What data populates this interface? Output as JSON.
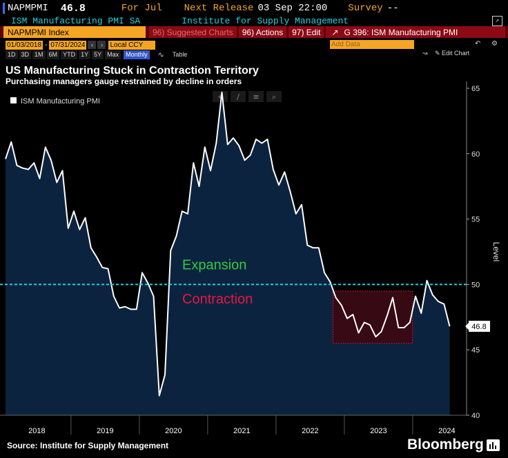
{
  "header": {
    "ticker": "NAPMPMI",
    "value": "46.8",
    "for_label": "For Jul",
    "next_release_label": "Next Release",
    "next_release": "03 Sep 22:00",
    "survey_label": "Survey",
    "survey_value": "--",
    "series_name": "ISM Manufacturing PMI SA",
    "source_name": "Institute for Supply Management"
  },
  "toolbar": {
    "index_label": "NAPMPMI Index",
    "suggested": "96) Suggested Charts",
    "actions": "96) Actions",
    "edit": "97) Edit",
    "gtitle": "G 396: ISM Manufacturing PMI"
  },
  "range": {
    "start": "01/03/2018",
    "end": "07/31/2024",
    "ccy": "Local CCY",
    "periods": [
      "1D",
      "3D",
      "1M",
      "6M",
      "YTD",
      "1Y",
      "5Y",
      "Max"
    ],
    "freq": "Monthly",
    "table_label": "Table",
    "add_data": "Add Data",
    "edit_chart": "Edit Chart"
  },
  "headline": {
    "title": "US Manufacturing Stuck in Contraction Territory",
    "subtitle": "Purchasing managers gauge restrained by decline in orders"
  },
  "footer": {
    "source": "Source: Institute for Supply Management",
    "brand": "Bloomberg"
  },
  "colors": {
    "area": "#0c2340",
    "line": "#ffffff",
    "threshold": "#1fd3e0",
    "expansion": "#2ecc40",
    "contraction": "#e8173f"
  },
  "chart_data": {
    "type": "area",
    "series_name": "ISM Manufacturing PMI",
    "ylabel": "Level",
    "ylim": [
      40,
      65
    ],
    "yticks": [
      40,
      45,
      50,
      55,
      60,
      65
    ],
    "year_labels": [
      "2018",
      "2019",
      "2020",
      "2021",
      "2022",
      "2023",
      "2024"
    ],
    "threshold": 50,
    "annotations": {
      "expansion": "Expansion",
      "contraction": "Contraction"
    },
    "last_value_label": "46.8",
    "highlight_box": {
      "x_start": "2022-11",
      "x_end": "2023-12",
      "y_low": 45.5,
      "y_high": 49.5
    },
    "x": [
      "2018-01",
      "2018-02",
      "2018-03",
      "2018-04",
      "2018-05",
      "2018-06",
      "2018-07",
      "2018-08",
      "2018-09",
      "2018-10",
      "2018-11",
      "2018-12",
      "2019-01",
      "2019-02",
      "2019-03",
      "2019-04",
      "2019-05",
      "2019-06",
      "2019-07",
      "2019-08",
      "2019-09",
      "2019-10",
      "2019-11",
      "2019-12",
      "2020-01",
      "2020-02",
      "2020-03",
      "2020-04",
      "2020-05",
      "2020-06",
      "2020-07",
      "2020-08",
      "2020-09",
      "2020-10",
      "2020-11",
      "2020-12",
      "2021-01",
      "2021-02",
      "2021-03",
      "2021-04",
      "2021-05",
      "2021-06",
      "2021-07",
      "2021-08",
      "2021-09",
      "2021-10",
      "2021-11",
      "2021-12",
      "2022-01",
      "2022-02",
      "2022-03",
      "2022-04",
      "2022-05",
      "2022-06",
      "2022-07",
      "2022-08",
      "2022-09",
      "2022-10",
      "2022-11",
      "2022-12",
      "2023-01",
      "2023-02",
      "2023-03",
      "2023-04",
      "2023-05",
      "2023-06",
      "2023-07",
      "2023-08",
      "2023-09",
      "2023-10",
      "2023-11",
      "2023-12",
      "2024-01",
      "2024-02",
      "2024-03",
      "2024-04",
      "2024-05",
      "2024-06",
      "2024-07"
    ],
    "values": [
      59.6,
      60.9,
      59.1,
      58.9,
      58.8,
      59.3,
      58.1,
      60.5,
      59.5,
      57.8,
      58.7,
      54.3,
      55.6,
      54.2,
      55.1,
      52.8,
      52.1,
      51.3,
      51.2,
      49.1,
      48.2,
      48.3,
      48.1,
      48.1,
      50.9,
      50.1,
      49.1,
      41.5,
      43.1,
      52.6,
      53.7,
      55.6,
      55.4,
      59.3,
      57.5,
      60.5,
      58.7,
      60.8,
      64.7,
      60.7,
      61.2,
      60.6,
      59.5,
      59.9,
      61.1,
      60.8,
      61.1,
      58.8,
      57.6,
      58.6,
      57.1,
      55.4,
      56.1,
      53.0,
      52.8,
      52.8,
      50.9,
      50.2,
      49.0,
      48.4,
      47.4,
      47.7,
      46.3,
      47.1,
      46.9,
      46.0,
      46.4,
      47.6,
      49.0,
      46.7,
      46.7,
      47.1,
      49.1,
      47.8,
      50.3,
      49.2,
      48.7,
      48.5,
      46.8
    ]
  }
}
